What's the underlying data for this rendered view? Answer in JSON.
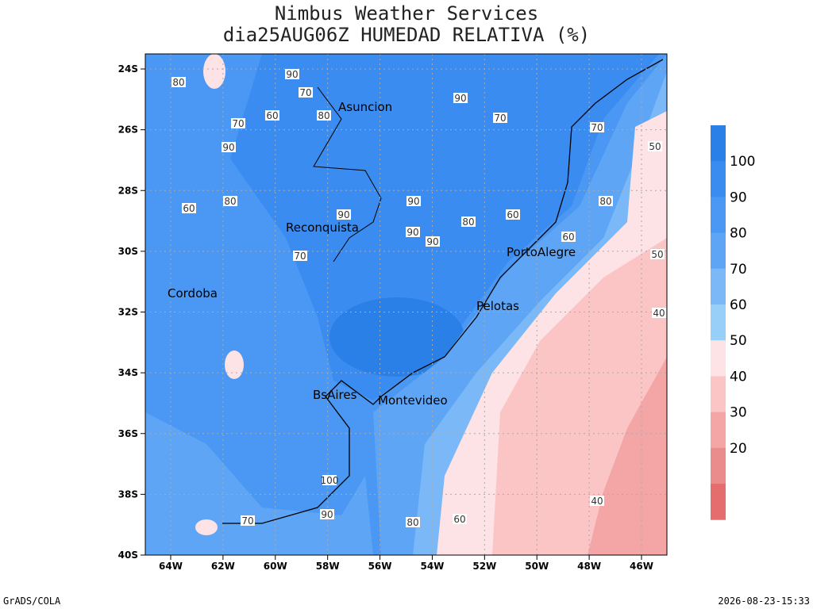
{
  "title": "Nimbus Weather Services",
  "subtitle": "dia25AUG06Z HUMEDAD RELATIVA (%)",
  "map": {
    "lat_ticks": [
      "24S",
      "26S",
      "28S",
      "30S",
      "32S",
      "34S",
      "36S",
      "38S",
      "40S"
    ],
    "lon_ticks": [
      "64W",
      "62W",
      "60W",
      "58W",
      "56W",
      "54W",
      "52W",
      "50W",
      "48W",
      "46W"
    ],
    "cities": [
      "Asuncion",
      "Reconquista",
      "Cordoba",
      "PortoAlegre",
      "Pelotas",
      "BsAires",
      "Montevideo"
    ],
    "contour_labels": [
      80,
      90,
      70,
      90,
      80,
      60,
      70,
      90,
      60,
      90,
      80,
      90,
      70,
      90,
      80,
      90,
      100,
      70,
      80,
      60,
      70,
      50,
      50,
      40,
      40,
      60,
      70,
      90,
      80,
      60
    ]
  },
  "colorbar": {
    "levels": [
      100,
      90,
      80,
      70,
      60,
      50,
      40,
      30,
      20
    ],
    "colors": [
      "#2b80e8",
      "#3a8cf0",
      "#4a98f3",
      "#5ea6f5",
      "#7ab8f7",
      "#97cff9",
      "#fde3e5",
      "#fbc5c6",
      "#f4a5a5",
      "#ea8c8c",
      "#e56d6d"
    ]
  },
  "footer": {
    "left": "GrADS/COLA",
    "right": "2026-08-23-15:33"
  }
}
